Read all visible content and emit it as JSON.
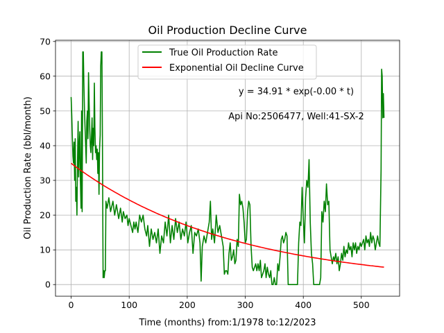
{
  "chart_data": {
    "type": "line",
    "title": "Oil Production Decline Curve",
    "xlabel": "Time (months) from:1/1978 to:12/2023",
    "ylabel": "Oil Production Rate (bbl/month)",
    "xlim": [
      -26.95,
      565.95
    ],
    "ylim": [
      -3.35,
      70.35
    ],
    "x_ticks": [
      0,
      100,
      200,
      300,
      400,
      500
    ],
    "y_ticks": [
      0,
      10,
      20,
      30,
      40,
      50,
      60,
      70
    ],
    "grid": true,
    "legend_position": "top-center",
    "annotations": {
      "equation": "y = 34.91 * exp(-0.00 * t)",
      "well_info": "Api No:2506477, Well:41-SX-2"
    },
    "series": [
      {
        "name": "True Oil Production Rate",
        "color": "#008000",
        "style": "line",
        "points": [
          [
            0,
            54
          ],
          [
            1,
            49
          ],
          [
            2,
            43
          ],
          [
            3,
            37
          ],
          [
            4,
            35
          ],
          [
            5,
            41
          ],
          [
            6,
            30
          ],
          [
            7,
            42
          ],
          [
            8,
            24
          ],
          [
            9,
            28
          ],
          [
            10,
            20
          ],
          [
            11,
            35
          ],
          [
            12,
            47
          ],
          [
            13,
            31
          ],
          [
            14,
            40
          ],
          [
            15,
            44
          ],
          [
            16,
            30
          ],
          [
            17,
            22
          ],
          [
            18,
            50
          ],
          [
            19,
            21
          ],
          [
            20,
            67
          ],
          [
            21,
            67
          ],
          [
            22,
            58
          ],
          [
            23,
            50
          ],
          [
            24,
            45
          ],
          [
            25,
            40
          ],
          [
            26,
            35
          ],
          [
            27,
            47
          ],
          [
            28,
            50
          ],
          [
            29,
            42
          ],
          [
            30,
            61
          ],
          [
            31,
            52
          ],
          [
            32,
            45
          ],
          [
            33,
            40
          ],
          [
            34,
            38
          ],
          [
            35,
            42
          ],
          [
            36,
            48
          ],
          [
            37,
            36
          ],
          [
            38,
            45
          ],
          [
            39,
            40
          ],
          [
            40,
            58
          ],
          [
            41,
            45
          ],
          [
            42,
            38
          ],
          [
            43,
            40
          ],
          [
            44,
            36
          ],
          [
            45,
            39
          ],
          [
            46,
            32
          ],
          [
            47,
            38
          ],
          [
            48,
            26
          ],
          [
            49,
            39
          ],
          [
            50,
            43
          ],
          [
            51,
            63
          ],
          [
            52,
            67
          ],
          [
            53,
            67
          ],
          [
            54,
            40
          ],
          [
            55,
            2
          ],
          [
            56,
            4
          ],
          [
            57,
            2
          ],
          [
            58,
            4
          ],
          [
            59,
            4
          ],
          [
            60,
            24
          ],
          [
            62,
            22
          ],
          [
            65,
            25
          ],
          [
            68,
            21
          ],
          [
            72,
            24
          ],
          [
            75,
            20
          ],
          [
            78,
            23
          ],
          [
            82,
            19
          ],
          [
            85,
            22
          ],
          [
            88,
            18
          ],
          [
            90,
            21
          ],
          [
            93,
            19
          ],
          [
            96,
            20
          ],
          [
            98,
            17
          ],
          [
            100,
            19
          ],
          [
            103,
            17
          ],
          [
            106,
            15
          ],
          [
            108,
            18
          ],
          [
            110,
            16
          ],
          [
            112,
            18
          ],
          [
            115,
            15
          ],
          [
            118,
            20
          ],
          [
            121,
            18
          ],
          [
            124,
            20
          ],
          [
            127,
            16
          ],
          [
            130,
            14
          ],
          [
            132,
            17
          ],
          [
            135,
            11
          ],
          [
            138,
            16
          ],
          [
            141,
            13
          ],
          [
            144,
            15
          ],
          [
            147,
            12
          ],
          [
            150,
            16
          ],
          [
            153,
            9
          ],
          [
            156,
            14
          ],
          [
            159,
            12
          ],
          [
            162,
            18
          ],
          [
            165,
            14
          ],
          [
            168,
            20
          ],
          [
            171,
            12
          ],
          [
            174,
            17
          ],
          [
            177,
            13
          ],
          [
            180,
            19
          ],
          [
            183,
            15
          ],
          [
            186,
            18
          ],
          [
            189,
            13
          ],
          [
            192,
            16
          ],
          [
            195,
            14
          ],
          [
            198,
            18
          ],
          [
            201,
            12
          ],
          [
            204,
            15
          ],
          [
            207,
            17
          ],
          [
            210,
            9
          ],
          [
            213,
            15
          ],
          [
            216,
            14
          ],
          [
            219,
            16
          ],
          [
            222,
            12
          ],
          [
            224,
            1
          ],
          [
            226,
            11
          ],
          [
            229,
            14
          ],
          [
            232,
            12
          ],
          [
            235,
            15
          ],
          [
            238,
            18
          ],
          [
            240,
            24
          ],
          [
            242,
            13
          ],
          [
            244,
            16
          ],
          [
            247,
            12
          ],
          [
            250,
            20
          ],
          [
            253,
            15
          ],
          [
            256,
            17
          ],
          [
            259,
            14
          ],
          [
            262,
            11
          ],
          [
            264,
            3
          ],
          [
            266,
            4
          ],
          [
            268,
            4
          ],
          [
            270,
            3
          ],
          [
            272,
            9
          ],
          [
            274,
            12
          ],
          [
            276,
            7
          ],
          [
            278,
            8
          ],
          [
            280,
            10
          ],
          [
            282,
            6
          ],
          [
            284,
            7
          ],
          [
            286,
            13
          ],
          [
            288,
            11
          ],
          [
            290,
            26
          ],
          [
            292,
            23
          ],
          [
            294,
            24
          ],
          [
            296,
            22
          ],
          [
            298,
            18
          ],
          [
            300,
            12
          ],
          [
            302,
            13
          ],
          [
            304,
            21
          ],
          [
            306,
            24
          ],
          [
            308,
            23
          ],
          [
            310,
            11
          ],
          [
            312,
            5
          ],
          [
            314,
            4
          ],
          [
            316,
            5
          ],
          [
            318,
            6
          ],
          [
            320,
            4
          ],
          [
            322,
            6
          ],
          [
            324,
            4
          ],
          [
            326,
            7
          ],
          [
            328,
            2
          ],
          [
            330,
            3
          ],
          [
            332,
            4
          ],
          [
            334,
            6
          ],
          [
            336,
            2
          ],
          [
            338,
            5
          ],
          [
            340,
            3
          ],
          [
            342,
            2
          ],
          [
            344,
            4
          ],
          [
            346,
            0
          ],
          [
            348,
            0
          ],
          [
            350,
            2
          ],
          [
            352,
            0
          ],
          [
            354,
            0
          ],
          [
            356,
            6
          ],
          [
            358,
            4
          ],
          [
            360,
            8
          ],
          [
            362,
            13
          ],
          [
            364,
            14
          ],
          [
            366,
            12
          ],
          [
            368,
            13
          ],
          [
            370,
            15
          ],
          [
            372,
            14
          ],
          [
            374,
            0
          ],
          [
            376,
            0
          ],
          [
            378,
            0
          ],
          [
            380,
            0
          ],
          [
            382,
            0
          ],
          [
            384,
            0
          ],
          [
            386,
            0
          ],
          [
            388,
            0
          ],
          [
            390,
            0
          ],
          [
            392,
            12
          ],
          [
            394,
            18
          ],
          [
            396,
            17
          ],
          [
            398,
            28
          ],
          [
            400,
            19
          ],
          [
            402,
            12
          ],
          [
            404,
            25
          ],
          [
            406,
            30
          ],
          [
            408,
            28
          ],
          [
            410,
            36
          ],
          [
            412,
            18
          ],
          [
            414,
            9
          ],
          [
            416,
            6
          ],
          [
            418,
            0
          ],
          [
            420,
            0
          ],
          [
            422,
            0
          ],
          [
            424,
            0
          ],
          [
            426,
            0
          ],
          [
            428,
            0
          ],
          [
            430,
            2
          ],
          [
            432,
            21
          ],
          [
            434,
            18
          ],
          [
            436,
            24
          ],
          [
            438,
            21
          ],
          [
            440,
            29
          ],
          [
            442,
            23
          ],
          [
            444,
            24
          ],
          [
            446,
            10
          ],
          [
            448,
            8
          ],
          [
            450,
            6
          ],
          [
            452,
            8
          ],
          [
            454,
            7
          ],
          [
            456,
            9
          ],
          [
            458,
            6
          ],
          [
            460,
            8
          ],
          [
            462,
            4
          ],
          [
            464,
            6
          ],
          [
            466,
            9
          ],
          [
            468,
            7
          ],
          [
            470,
            11
          ],
          [
            472,
            8
          ],
          [
            474,
            10
          ],
          [
            476,
            9
          ],
          [
            478,
            12
          ],
          [
            480,
            10
          ],
          [
            482,
            11
          ],
          [
            484,
            8
          ],
          [
            486,
            12
          ],
          [
            488,
            10
          ],
          [
            490,
            12
          ],
          [
            492,
            9
          ],
          [
            494,
            11
          ],
          [
            496,
            10
          ],
          [
            498,
            12
          ],
          [
            500,
            11
          ],
          [
            502,
            12
          ],
          [
            504,
            13
          ],
          [
            506,
            10
          ],
          [
            508,
            14
          ],
          [
            510,
            12
          ],
          [
            512,
            13
          ],
          [
            514,
            11
          ],
          [
            516,
            15
          ],
          [
            518,
            12
          ],
          [
            520,
            14
          ],
          [
            522,
            13
          ],
          [
            524,
            10
          ],
          [
            526,
            12
          ],
          [
            528,
            14
          ],
          [
            530,
            12
          ],
          [
            532,
            11
          ],
          [
            534,
            33
          ],
          [
            535,
            62
          ],
          [
            536,
            60
          ],
          [
            537,
            48
          ],
          [
            538,
            55
          ],
          [
            539,
            48
          ]
        ]
      },
      {
        "name": "Exponential Oil Decline Curve",
        "color": "#ff0000",
        "style": "curve",
        "a": 34.91,
        "b": 0.0036,
        "x_range": [
          0,
          539
        ]
      }
    ]
  }
}
